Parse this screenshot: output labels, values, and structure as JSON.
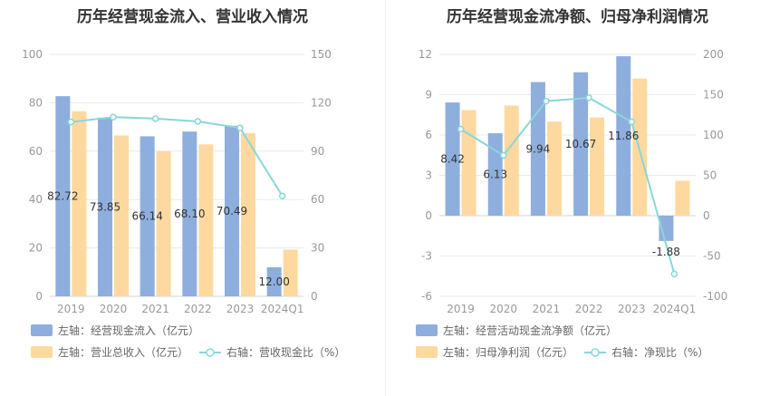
{
  "charts": [
    {
      "title": "历年经营现金流入、营业收入情况",
      "categories": [
        "2019",
        "2020",
        "2021",
        "2022",
        "2023",
        "2024Q1"
      ],
      "left_axis": {
        "min": 0,
        "max": 100,
        "step": 20,
        "ticks": [
          "0",
          "20",
          "40",
          "60",
          "80",
          "100"
        ]
      },
      "right_axis": {
        "min": 0,
        "max": 150,
        "step": 30,
        "ticks": [
          "0",
          "30",
          "60",
          "90",
          "120",
          "150"
        ]
      },
      "series": [
        {
          "name": "左轴：经营现金流入（亿元）",
          "type": "bar",
          "axis": "left",
          "color": "#8eaedd",
          "values": [
            82.72,
            73.85,
            66.14,
            68.1,
            70.49,
            12.0
          ],
          "labels": [
            "82.72",
            "73.85",
            "66.14",
            "68.10",
            "70.49",
            "12.00"
          ]
        },
        {
          "name": "左轴：营业总收入（亿元）",
          "type": "bar",
          "axis": "left",
          "color": "#fdd9a0",
          "values": [
            76.5,
            66.5,
            60.0,
            62.8,
            67.5,
            19.3
          ]
        },
        {
          "name": "右轴：营收现金比（%）",
          "type": "line",
          "axis": "right",
          "color": "#8ad6d8",
          "values": [
            108.1,
            111.1,
            110.2,
            108.4,
            104.4,
            62.2
          ]
        }
      ]
    },
    {
      "title": "历年经营现金流净额、归母净利润情况",
      "categories": [
        "2019",
        "2020",
        "2021",
        "2022",
        "2023",
        "2024Q1"
      ],
      "left_axis": {
        "min": -6,
        "max": 12,
        "step": 3,
        "ticks": [
          "-6",
          "-3",
          "0",
          "3",
          "6",
          "9",
          "12"
        ]
      },
      "right_axis": {
        "min": -100,
        "max": 200,
        "step": 50,
        "ticks": [
          "-100",
          "-50",
          "0",
          "50",
          "100",
          "150",
          "200"
        ]
      },
      "series": [
        {
          "name": "左轴：经营活动现金流净额（亿元）",
          "type": "bar",
          "axis": "left",
          "color": "#8eaedd",
          "values": [
            8.42,
            6.13,
            9.94,
            10.67,
            11.86,
            -1.88
          ],
          "labels": [
            "8.42",
            "6.13",
            "9.94",
            "10.67",
            "11.86",
            "-1.88"
          ]
        },
        {
          "name": "左轴：归母净利润（亿元）",
          "type": "bar",
          "axis": "left",
          "color": "#fdd9a0",
          "values": [
            7.85,
            8.2,
            7.0,
            7.3,
            10.2,
            2.6
          ]
        },
        {
          "name": "右轴：净现比（%）",
          "type": "line",
          "axis": "right",
          "color": "#8ad6d8",
          "values": [
            107.3,
            74.8,
            142.0,
            146.2,
            116.3,
            -72.3
          ]
        }
      ]
    }
  ]
}
